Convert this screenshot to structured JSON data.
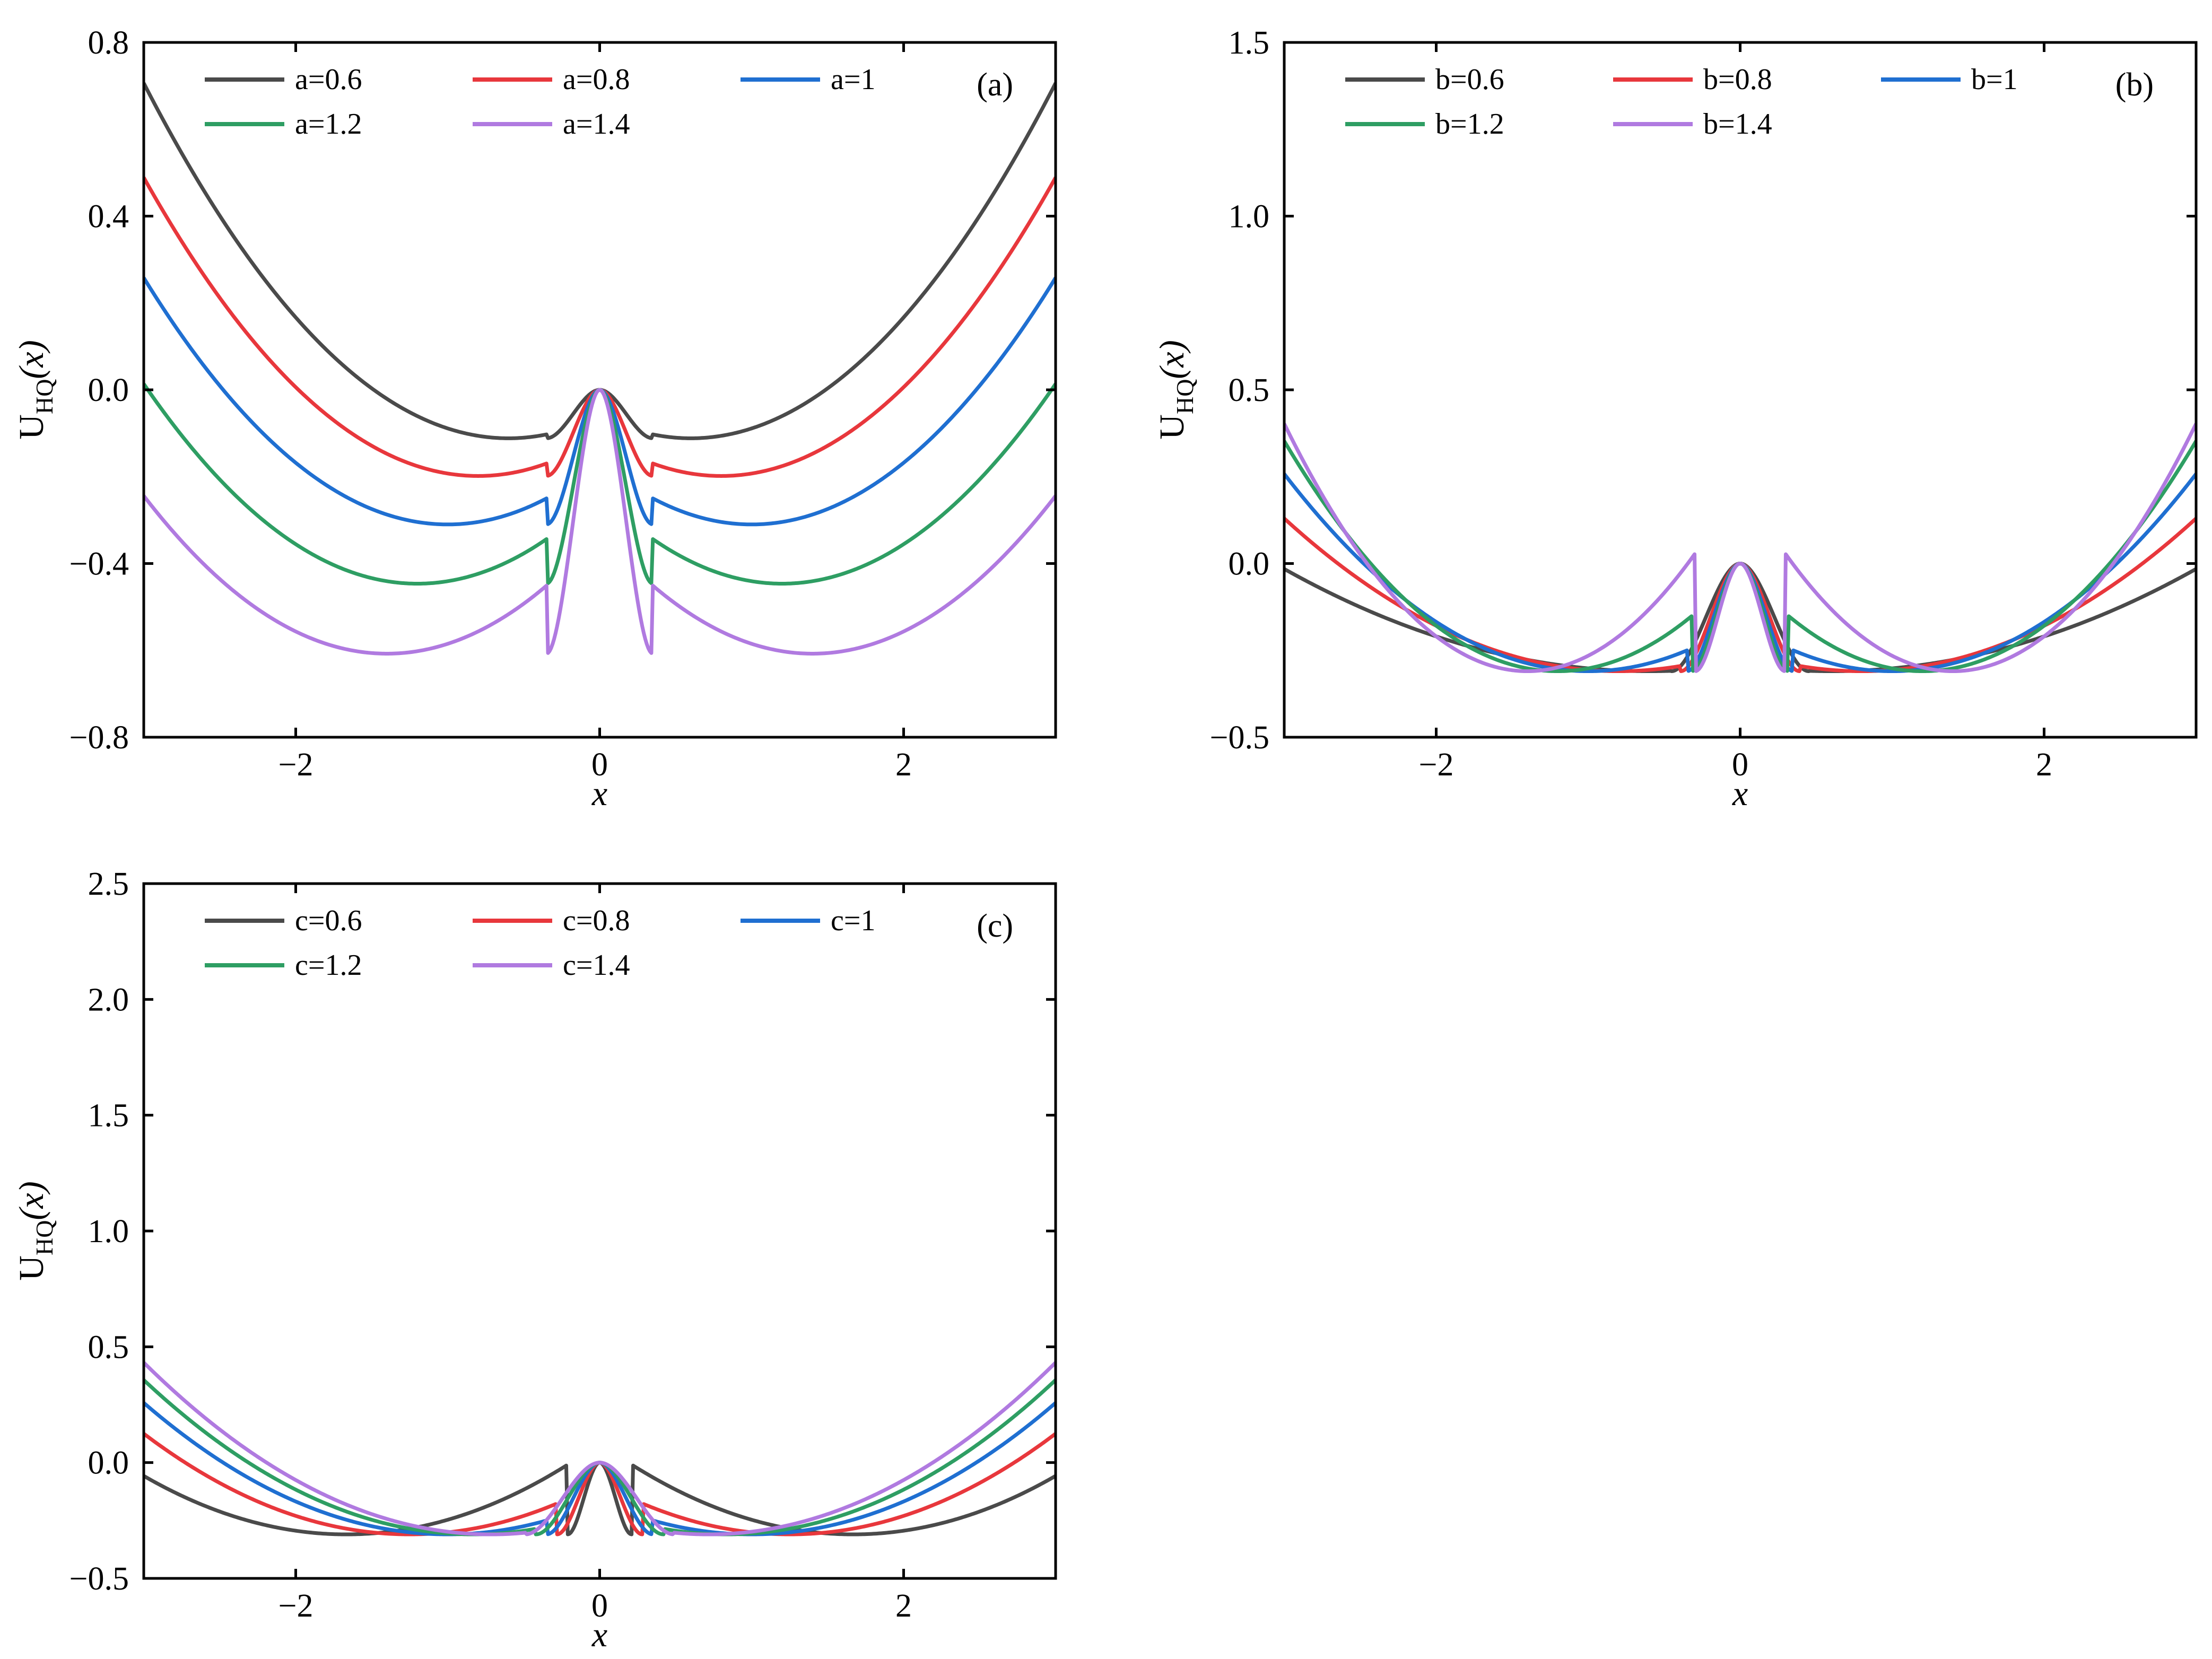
{
  "figure": {
    "panels": [
      "a",
      "b",
      "c"
    ]
  },
  "chart_data": [
    {
      "type": "line",
      "panel": "a",
      "tag": "(a)",
      "title": "",
      "xlabel": "x",
      "ylabel_main": "U",
      "ylabel_sub": "HQ",
      "ylabel_arg": "(x)",
      "xlim": [
        -3,
        3
      ],
      "ylim": [
        -0.8,
        0.8
      ],
      "xticks": [
        -2,
        0,
        2
      ],
      "xtick_labels": [
        "−2",
        "0",
        "2"
      ],
      "yticks": [
        -0.8,
        -0.4,
        0.0,
        0.4,
        0.8
      ],
      "ytick_labels": [
        "−0.8",
        "−0.4",
        "0.0",
        "0.4",
        "0.8"
      ],
      "legend_position": "top-left",
      "param": "a",
      "series": [
        {
          "name": "a=0.6",
          "color": "#4a4a4a",
          "a": 0.6,
          "b": 1,
          "c": 1
        },
        {
          "name": "a=0.8",
          "color": "#e8373c",
          "a": 0.8,
          "b": 1,
          "c": 1
        },
        {
          "name": "a=1",
          "color": "#1f6fd1",
          "a": 1.0,
          "b": 1,
          "c": 1
        },
        {
          "name": "a=1.2",
          "color": "#2e9e63",
          "a": 1.2,
          "b": 1,
          "c": 1
        },
        {
          "name": "a=1.4",
          "color": "#b07ae0",
          "a": 1.4,
          "b": 1,
          "c": 1
        }
      ]
    },
    {
      "type": "line",
      "panel": "b",
      "tag": "(b)",
      "title": "",
      "xlabel": "x",
      "ylabel_main": "U",
      "ylabel_sub": "HQ",
      "ylabel_arg": "(x)",
      "xlim": [
        -3,
        3
      ],
      "ylim": [
        -0.5,
        1.5
      ],
      "xticks": [
        -2,
        0,
        2
      ],
      "xtick_labels": [
        "−2",
        "0",
        "2"
      ],
      "yticks": [
        -0.5,
        0.0,
        0.5,
        1.0,
        1.5
      ],
      "ytick_labels": [
        "−0.5",
        "0.0",
        "0.5",
        "1.0",
        "1.5"
      ],
      "legend_position": "top-left",
      "param": "b",
      "series": [
        {
          "name": "b=0.6",
          "color": "#4a4a4a",
          "a": 1,
          "b": 0.6,
          "c": 1
        },
        {
          "name": "b=0.8",
          "color": "#e8373c",
          "a": 1,
          "b": 0.8,
          "c": 1
        },
        {
          "name": "b=1",
          "color": "#1f6fd1",
          "a": 1,
          "b": 1.0,
          "c": 1
        },
        {
          "name": "b=1.2",
          "color": "#2e9e63",
          "a": 1,
          "b": 1.2,
          "c": 1
        },
        {
          "name": "b=1.4",
          "color": "#b07ae0",
          "a": 1,
          "b": 1.4,
          "c": 1
        }
      ]
    },
    {
      "type": "line",
      "panel": "c",
      "tag": "(c)",
      "title": "",
      "xlabel": "x",
      "ylabel_main": "U",
      "ylabel_sub": "HQ",
      "ylabel_arg": "(x)",
      "xlim": [
        -3,
        3
      ],
      "ylim": [
        -0.5,
        2.5
      ],
      "xticks": [
        -2,
        0,
        2
      ],
      "xtick_labels": [
        "−2",
        "0",
        "2"
      ],
      "yticks": [
        -0.5,
        0.0,
        0.5,
        1.0,
        1.5,
        2.0,
        2.5
      ],
      "ytick_labels": [
        "−0.5",
        "0.0",
        "0.5",
        "1.0",
        "1.5",
        "2.0",
        "2.5"
      ],
      "legend_position": "top-left",
      "param": "c",
      "series": [
        {
          "name": "c=0.6",
          "color": "#4a4a4a",
          "a": 1,
          "b": 1,
          "c": 0.6
        },
        {
          "name": "c=0.8",
          "color": "#e8373c",
          "a": 1,
          "b": 1,
          "c": 0.8
        },
        {
          "name": "c=1",
          "color": "#1f6fd1",
          "a": 1,
          "b": 1,
          "c": 1.0
        },
        {
          "name": "c=1.2",
          "color": "#2e9e63",
          "a": 1,
          "b": 1,
          "c": 1.2
        },
        {
          "name": "c=1.4",
          "color": "#b07ae0",
          "a": 1,
          "b": 1,
          "c": 1.4
        }
      ]
    }
  ]
}
